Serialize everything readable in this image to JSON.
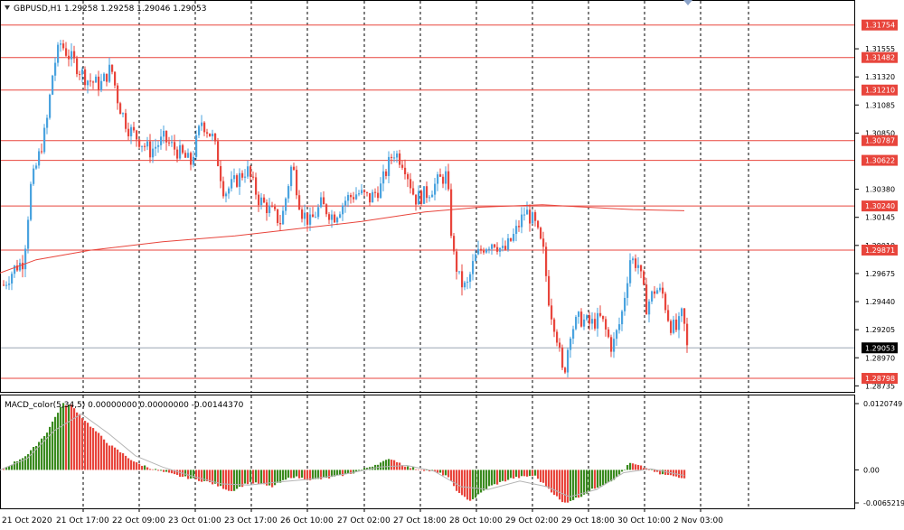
{
  "chart_data": {
    "type": "candlestick",
    "symbol_header": "GBPUSD,H1  1.29258 1.29258 1.29046 1.29053",
    "price_axis_ticks": [
      "1.31555",
      "1.31320",
      "1.31085",
      "1.30850",
      "1.30380",
      "1.30145",
      "1.29910",
      "1.29675",
      "1.29440",
      "1.29205",
      "1.28970",
      "1.28735"
    ],
    "price_range": [
      1.287,
      1.3185
    ],
    "horizontal_levels": [
      "1.31754",
      "1.31482",
      "1.31210",
      "1.30787",
      "1.30622",
      "1.30240",
      "1.29871",
      "1.28798"
    ],
    "current_price": "1.29053",
    "moving_average": [
      [
        0,
        1.2968
      ],
      [
        40,
        1.2979
      ],
      [
        100,
        1.2987
      ],
      [
        180,
        1.2994
      ],
      [
        260,
        1.2999
      ],
      [
        330,
        1.3005
      ],
      [
        400,
        1.3011
      ],
      [
        470,
        1.3019
      ],
      [
        530,
        1.3023
      ],
      [
        600,
        1.3025
      ],
      [
        650,
        1.3023
      ],
      [
        700,
        1.3021
      ],
      [
        757,
        1.302
      ]
    ],
    "time_labels": [
      "21 Oct 2020",
      "21 Oct 17:00",
      "22 Oct 09:00",
      "23 Oct 01:00",
      "23 Oct 17:00",
      "26 Oct 10:00",
      "27 Oct 02:00",
      "27 Oct 18:00",
      "28 Oct 10:00",
      "29 Oct 02:00",
      "29 Oct 18:00",
      "30 Oct 10:00",
      "2 Nov 03:00"
    ],
    "price_path": [
      [
        3,
        1.2958
      ],
      [
        15,
        1.2972
      ],
      [
        25,
        1.2978
      ],
      [
        33,
        1.304
      ],
      [
        40,
        1.306
      ],
      [
        50,
        1.309
      ],
      [
        58,
        1.314
      ],
      [
        66,
        1.316
      ],
      [
        75,
        1.315
      ],
      [
        85,
        1.314
      ],
      [
        95,
        1.313
      ],
      [
        110,
        1.3125
      ],
      [
        122,
        1.314
      ],
      [
        130,
        1.311
      ],
      [
        140,
        1.309
      ],
      [
        152,
        1.308
      ],
      [
        165,
        1.307
      ],
      [
        180,
        1.308
      ],
      [
        195,
        1.307
      ],
      [
        210,
        1.306
      ],
      [
        222,
        1.3095
      ],
      [
        235,
        1.308
      ],
      [
        247,
        1.3035
      ],
      [
        260,
        1.3045
      ],
      [
        272,
        1.3055
      ],
      [
        285,
        1.303
      ],
      [
        298,
        1.302
      ],
      [
        310,
        1.301
      ],
      [
        322,
        1.306
      ],
      [
        332,
        1.302
      ],
      [
        342,
        1.301
      ],
      [
        354,
        1.3025
      ],
      [
        368,
        1.3015
      ],
      [
        382,
        1.303
      ],
      [
        395,
        1.3035
      ],
      [
        408,
        1.303
      ],
      [
        420,
        1.304
      ],
      [
        434,
        1.307
      ],
      [
        446,
        1.306
      ],
      [
        458,
        1.303
      ],
      [
        472,
        1.3035
      ],
      [
        484,
        1.3045
      ],
      [
        493,
        1.305
      ],
      [
        500,
        1.2985
      ],
      [
        508,
        1.296
      ],
      [
        515,
        1.2955
      ],
      [
        524,
        1.298
      ],
      [
        534,
        1.299
      ],
      [
        545,
        1.2995
      ],
      [
        556,
        1.2985
      ],
      [
        568,
        1.3
      ],
      [
        580,
        1.302
      ],
      [
        590,
        1.301
      ],
      [
        600,
        1.2985
      ],
      [
        607,
        1.294
      ],
      [
        614,
        1.292
      ],
      [
        622,
        1.288
      ],
      [
        630,
        1.292
      ],
      [
        640,
        1.293
      ],
      [
        652,
        1.2925
      ],
      [
        664,
        1.293
      ],
      [
        676,
        1.2905
      ],
      [
        686,
        1.293
      ],
      [
        696,
        1.298
      ],
      [
        705,
        1.2975
      ],
      [
        714,
        1.294
      ],
      [
        724,
        1.2955
      ],
      [
        732,
        1.295
      ],
      [
        740,
        1.2925
      ],
      [
        748,
        1.292
      ],
      [
        754,
        1.2935
      ],
      [
        759,
        1.2905
      ]
    ],
    "macd_header": "MACD_color(5,34,5) 0.00000000 0.00000000 -0.00144370",
    "macd_axis_ticks": [
      "0.0120749",
      "0.00",
      "-0.0065219"
    ],
    "macd_range": [
      -0.0067,
      0.0128
    ],
    "macd_histogram": [
      [
        3,
        0.0002
      ],
      [
        30,
        0.0028
      ],
      [
        50,
        0.0065
      ],
      [
        68,
        0.0118
      ],
      [
        78,
        0.0115
      ],
      [
        95,
        0.0085
      ],
      [
        120,
        0.0045
      ],
      [
        150,
        0.0012
      ],
      [
        175,
        -0.0002
      ],
      [
        200,
        -0.0012
      ],
      [
        230,
        -0.0022
      ],
      [
        255,
        -0.0038
      ],
      [
        275,
        -0.0022
      ],
      [
        300,
        -0.003
      ],
      [
        322,
        -0.0012
      ],
      [
        345,
        -0.0018
      ],
      [
        365,
        -0.0014
      ],
      [
        390,
        -0.0005
      ],
      [
        412,
        0.0008
      ],
      [
        432,
        0.002
      ],
      [
        450,
        0.0005
      ],
      [
        475,
        -0.0002
      ],
      [
        493,
        -0.001
      ],
      [
        508,
        -0.0045
      ],
      [
        520,
        -0.0055
      ],
      [
        540,
        -0.003
      ],
      [
        565,
        -0.0015
      ],
      [
        590,
        -0.001
      ],
      [
        607,
        -0.0035
      ],
      [
        622,
        -0.006
      ],
      [
        640,
        -0.0048
      ],
      [
        660,
        -0.003
      ],
      [
        680,
        -0.0015
      ],
      [
        696,
        0.0012
      ],
      [
        710,
        0.0005
      ],
      [
        730,
        -0.0008
      ],
      [
        757,
        -0.0014
      ]
    ],
    "macd_signal": [
      [
        0,
        0.0
      ],
      [
        30,
        0.002
      ],
      [
        60,
        0.007
      ],
      [
        90,
        0.01
      ],
      [
        120,
        0.0065
      ],
      [
        150,
        0.0025
      ],
      [
        180,
        0.0005
      ],
      [
        210,
        -0.001
      ],
      [
        245,
        -0.0025
      ],
      [
        275,
        -0.0027
      ],
      [
        305,
        -0.0022
      ],
      [
        340,
        -0.0017
      ],
      [
        380,
        -0.0008
      ],
      [
        420,
        0.0005
      ],
      [
        450,
        0.0008
      ],
      [
        480,
        -0.0002
      ],
      [
        510,
        -0.003
      ],
      [
        540,
        -0.0035
      ],
      [
        575,
        -0.002
      ],
      [
        605,
        -0.003
      ],
      [
        630,
        -0.0048
      ],
      [
        660,
        -0.0035
      ],
      [
        690,
        -0.0005
      ],
      [
        720,
        0.0002
      ],
      [
        757,
        -0.001
      ]
    ],
    "colors": {
      "bull": "#4aa3df",
      "bear": "#e8453c",
      "levels": "#e8453c",
      "ma": "#e8453c",
      "macd_up": "#3a8a1f",
      "macd_down": "#e8453c",
      "signal": "#b5b5b5"
    }
  }
}
